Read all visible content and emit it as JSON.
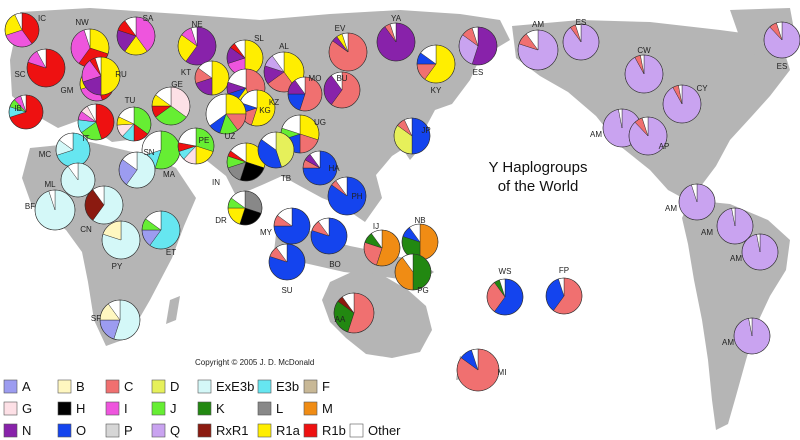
{
  "title": [
    "Y Haplogroups",
    "of the World"
  ],
  "copyright": "Copyright © 2005 J. D. McDonald",
  "haplogroups": [
    {
      "name": "A",
      "color": "#9c9cf0"
    },
    {
      "name": "B",
      "color": "#fff7c0"
    },
    {
      "name": "C",
      "color": "#f07070"
    },
    {
      "name": "D",
      "color": "#e6f05a"
    },
    {
      "name": "ExE3b",
      "color": "#d4f8f8"
    },
    {
      "name": "E3b",
      "color": "#66e6f0"
    },
    {
      "name": "F",
      "color": "#c8b896"
    },
    {
      "name": "G",
      "color": "#fde0e6"
    },
    {
      "name": "H",
      "color": "#000000"
    },
    {
      "name": "I",
      "color": "#ee55dd"
    },
    {
      "name": "J",
      "color": "#66ee33"
    },
    {
      "name": "K",
      "color": "#228811"
    },
    {
      "name": "L",
      "color": "#888888"
    },
    {
      "name": "M",
      "color": "#f08c14"
    },
    {
      "name": "N",
      "color": "#8822aa"
    },
    {
      "name": "O",
      "color": "#1444ee"
    },
    {
      "name": "P",
      "color": "#d6d6d6"
    },
    {
      "name": "Q",
      "color": "#c9a3f0"
    },
    {
      "name": "RxR1",
      "color": "#8b1a10"
    },
    {
      "name": "R1a",
      "color": "#ffee00"
    },
    {
      "name": "R1b",
      "color": "#ee1111"
    },
    {
      "name": "Other",
      "color": "#ffffff"
    }
  ],
  "populations": [
    {
      "label": "IC",
      "slices": {
        "R1b": 40,
        "I": 30,
        "R1a": 23,
        "Other": 7
      }
    },
    {
      "label": "NW",
      "slices": {
        "R1a": 30,
        "R1b": 30,
        "I": 35,
        "Other": 5
      }
    },
    {
      "label": "SA",
      "slices": {
        "I": 40,
        "R1a": 20,
        "N": 20,
        "R1b": 10,
        "Other": 10
      }
    },
    {
      "label": "NE",
      "slices": {
        "N": 60,
        "R1a": 25,
        "I": 10,
        "Other": 5
      }
    },
    {
      "label": "SL",
      "slices": {
        "R1a": 50,
        "I": 20,
        "N": 15,
        "R1b": 5,
        "Other": 10
      }
    },
    {
      "label": "EV",
      "slices": {
        "C": 85,
        "N": 5,
        "R1a": 5,
        "Other": 5
      }
    },
    {
      "label": "YA",
      "slices": {
        "N": 90,
        "C": 5,
        "Other": 5
      }
    },
    {
      "label": "ES",
      "slices": {
        "N": 55,
        "Q": 30,
        "C": 10,
        "Other": 5
      }
    },
    {
      "label": "SC",
      "slices": {
        "R1b": 80,
        "I": 12,
        "Other": 8
      }
    },
    {
      "label": "GM",
      "slices": {
        "R1b": 45,
        "I": 25,
        "R1a": 15,
        "E3b": 8,
        "Other": 7
      }
    },
    {
      "label": "RU",
      "slices": {
        "R1a": 50,
        "N": 20,
        "I": 20,
        "R1b": 5,
        "Other": 5
      }
    },
    {
      "label": "KT",
      "slices": {
        "R1a": 50,
        "N": 20,
        "C": 15,
        "Other": 15
      }
    },
    {
      "label": "AL",
      "slices": {
        "R1a": 40,
        "C": 25,
        "N": 15,
        "Q": 10,
        "Other": 10
      }
    },
    {
      "label": "MO",
      "slices": {
        "C": 55,
        "O": 20,
        "N": 15,
        "Other": 10
      }
    },
    {
      "label": "BU",
      "slices": {
        "C": 60,
        "N": 30,
        "Other": 10
      }
    },
    {
      "label": "KY",
      "slices": {
        "R1a": 60,
        "C": 15,
        "O": 10,
        "Other": 15
      }
    },
    {
      "label": "IB",
      "slices": {
        "R1b": 70,
        "E3b": 10,
        "J": 8,
        "I": 7,
        "Other": 5
      }
    },
    {
      "label": "TU",
      "slices": {
        "J": 35,
        "R1b": 15,
        "E3b": 12,
        "G": 12,
        "R1a": 8,
        "Other": 18
      }
    },
    {
      "label": "GE",
      "slices": {
        "G": 35,
        "J": 30,
        "R1b": 10,
        "R1a": 10,
        "Other": 15
      }
    },
    {
      "label": "KZ",
      "slices": {
        "C": 45,
        "R1a": 15,
        "O": 10,
        "N": 10,
        "Other": 20
      }
    },
    {
      "label": "KG",
      "slices": {
        "R1a": 55,
        "C": 15,
        "O": 10,
        "Other": 20
      }
    },
    {
      "label": "UG",
      "slices": {
        "R1a": 30,
        "C": 20,
        "O": 20,
        "J": 10,
        "Other": 20
      }
    },
    {
      "label": "IT",
      "slices": {
        "R1b": 45,
        "J": 20,
        "E3b": 12,
        "I": 8,
        "G": 7,
        "Other": 8
      }
    },
    {
      "label": "MA",
      "slices": {
        "J": 55,
        "E3b": 15,
        "Other": 30
      }
    },
    {
      "label": "PE",
      "slices": {
        "J": 30,
        "R1a": 20,
        "G": 12,
        "E3b": 8,
        "R1b": 8,
        "Other": 22
      }
    },
    {
      "label": "UZ",
      "slices": {
        "R1a": 25,
        "C": 15,
        "J": 15,
        "O": 10,
        "Other": 35
      }
    },
    {
      "label": "IN",
      "slices": {
        "R1a": 30,
        "H": 25,
        "L": 15,
        "J": 10,
        "R1b": 5,
        "Other": 15
      }
    },
    {
      "label": "TB",
      "slices": {
        "D": 45,
        "O": 40,
        "Other": 15
      }
    },
    {
      "label": "HA",
      "slices": {
        "O": 75,
        "C": 8,
        "N": 7,
        "Other": 10
      }
    },
    {
      "label": "JP",
      "slices": {
        "O": 50,
        "D": 35,
        "C": 8,
        "Other": 7
      }
    },
    {
      "label": "MC",
      "slices": {
        "E3b": 70,
        "ExE3b": 15,
        "Other": 15
      }
    },
    {
      "label": "ML",
      "slices": {
        "ExE3b": 90,
        "Other": 10
      }
    },
    {
      "label": "SN",
      "slices": {
        "ExE3b": 60,
        "A": 25,
        "Other": 15
      }
    },
    {
      "label": "BF",
      "slices": {
        "ExE3b": 95,
        "Other": 5
      }
    },
    {
      "label": "CN",
      "slices": {
        "ExE3b": 60,
        "RxR1": 30,
        "Other": 10
      }
    },
    {
      "label": "DR",
      "slices": {
        "L": 30,
        "H": 25,
        "R1a": 20,
        "J": 10,
        "Other": 15
      }
    },
    {
      "label": "PY",
      "slices": {
        "ExE3b": 80,
        "B": 20
      }
    },
    {
      "label": "ET",
      "slices": {
        "E3b": 60,
        "A": 15,
        "J": 10,
        "Other": 15
      }
    },
    {
      "label": "PH",
      "slices": {
        "O": 85,
        "C": 5,
        "Other": 10
      }
    },
    {
      "label": "MY",
      "slices": {
        "O": 75,
        "C": 10,
        "Other": 15
      }
    },
    {
      "label": "BO",
      "slices": {
        "O": 80,
        "C": 10,
        "Other": 10
      }
    },
    {
      "label": "IJ",
      "slices": {
        "M": 55,
        "C": 25,
        "K": 10,
        "Other": 10
      }
    },
    {
      "label": "NB",
      "slices": {
        "M": 50,
        "K": 30,
        "O": 10,
        "Other": 10
      }
    },
    {
      "label": "PG",
      "slices": {
        "K": 50,
        "M": 40,
        "Other": 10
      }
    },
    {
      "label": "SU",
      "slices": {
        "O": 80,
        "C": 10,
        "Other": 10
      }
    },
    {
      "label": "AA",
      "slices": {
        "C": 55,
        "K": 30,
        "RxR1": 5,
        "Other": 10
      }
    },
    {
      "label": "SF",
      "slices": {
        "ExE3b": 55,
        "A": 20,
        "B": 15,
        "Other": 10
      }
    },
    {
      "label": "WS",
      "slices": {
        "O": 60,
        "C": 30,
        "K": 5,
        "Other": 5
      }
    },
    {
      "label": "FP",
      "slices": {
        "C": 60,
        "O": 35,
        "Other": 5
      }
    },
    {
      "label": "MI",
      "slices": {
        "C": 85,
        "O": 10,
        "Other": 5
      }
    },
    {
      "label": "AM",
      "slices": {
        "Q": 80,
        "C": 10,
        "Other": 10
      }
    },
    {
      "label": "ES",
      "slices": {
        "Q": 90,
        "C": 5,
        "Other": 5
      }
    },
    {
      "label": "CW",
      "slices": {
        "Q": 92,
        "C": 5,
        "Other": 3
      }
    },
    {
      "label": "ES",
      "slices": {
        "Q": 88,
        "C": 7,
        "Other": 5
      }
    },
    {
      "label": "CY",
      "slices": {
        "Q": 92,
        "C": 5,
        "Other": 3
      }
    },
    {
      "label": "AM",
      "slices": {
        "Q": 97,
        "Other": 3
      }
    },
    {
      "label": "AP",
      "slices": {
        "Q": 88,
        "C": 7,
        "Other": 5
      }
    },
    {
      "label": "AM",
      "slices": {
        "Q": 95,
        "Other": 5
      }
    },
    {
      "label": "AM",
      "slices": {
        "Q": 97,
        "Other": 3
      }
    },
    {
      "label": "AM",
      "slices": {
        "Q": 97,
        "Other": 3
      }
    },
    {
      "label": "AM",
      "slices": {
        "Q": 97,
        "Other": 3
      }
    }
  ]
}
